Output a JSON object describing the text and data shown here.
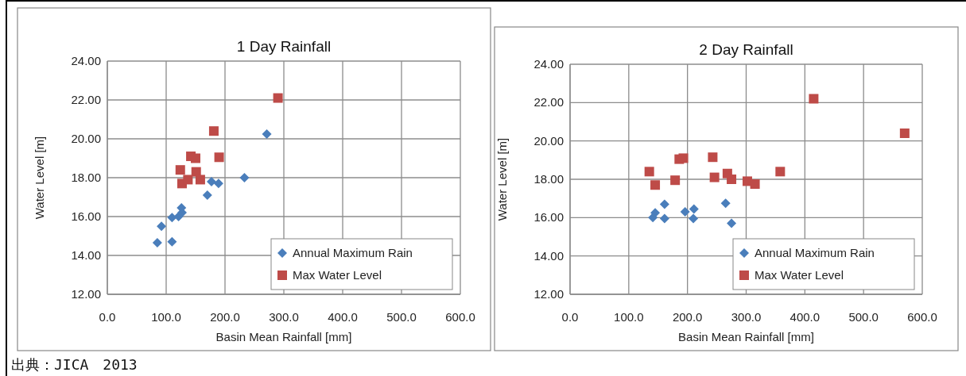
{
  "chart_data": [
    {
      "type": "scatter",
      "title": "1 Day Rainfall",
      "xlabel": "Basin Mean Rainfall [mm]",
      "ylabel": "Water Level [m]",
      "xlim": [
        0,
        600
      ],
      "ylim": [
        12,
        24
      ],
      "xticks": [
        {
          "value": 0,
          "label": "0.0"
        },
        {
          "value": 100,
          "label": "100.0"
        },
        {
          "value": 200,
          "label": "200.0"
        },
        {
          "value": 300,
          "label": "300.0"
        },
        {
          "value": 400,
          "label": "400.0"
        },
        {
          "value": 500,
          "label": "500.0"
        },
        {
          "value": 600,
          "label": "600.0"
        }
      ],
      "yticks": [
        {
          "value": 12,
          "label": "12.00"
        },
        {
          "value": 14,
          "label": "14.00"
        },
        {
          "value": 16,
          "label": "16.00"
        },
        {
          "value": 18,
          "label": "18.00"
        },
        {
          "value": 20,
          "label": "20.00"
        },
        {
          "value": 22,
          "label": "22.00"
        },
        {
          "value": 24,
          "label": "24.00"
        }
      ],
      "grid": true,
      "legend": "bottom right",
      "series": [
        {
          "name": "Annual Maximum Rain",
          "color": "#4a7ebb",
          "marker": "diamond",
          "x": [
            85,
            110,
            92,
            110,
            121,
            127,
            126,
            170,
            177,
            189,
            233,
            271
          ],
          "values": [
            14.65,
            14.7,
            15.5,
            15.95,
            16.0,
            16.2,
            16.45,
            17.1,
            17.8,
            17.7,
            18.0,
            20.25
          ]
        },
        {
          "name": "Max Water Level",
          "color": "#be4b48",
          "marker": "square",
          "x": [
            290,
            181,
            190,
            142,
            150,
            124,
            151,
            127,
            137,
            158
          ],
          "values": [
            22.1,
            20.4,
            19.05,
            19.1,
            19.0,
            18.4,
            18.3,
            17.7,
            17.9,
            17.9
          ]
        }
      ],
      "annotations": [
        "出典：JICA　2013"
      ]
    },
    {
      "type": "scatter",
      "title": "2 Day Rainfall",
      "xlabel": "Basin Mean Rainfall [mm]",
      "ylabel": "Water Level [m]",
      "xlim": [
        0,
        600
      ],
      "ylim": [
        12,
        24
      ],
      "xticks": [
        {
          "value": 0,
          "label": "0.0"
        },
        {
          "value": 100,
          "label": "100.0"
        },
        {
          "value": 200,
          "label": "200.0"
        },
        {
          "value": 300,
          "label": "300.0"
        },
        {
          "value": 400,
          "label": "400.0"
        },
        {
          "value": 500,
          "label": "500.0"
        },
        {
          "value": 600,
          "label": "600.0"
        }
      ],
      "yticks": [
        {
          "value": 12,
          "label": "12.00"
        },
        {
          "value": 14,
          "label": "14.00"
        },
        {
          "value": 16,
          "label": "16.00"
        },
        {
          "value": 18,
          "label": "18.00"
        },
        {
          "value": 20,
          "label": "20.00"
        },
        {
          "value": 22,
          "label": "22.00"
        },
        {
          "value": 24,
          "label": "24.00"
        }
      ],
      "grid": true,
      "legend": "bottom right",
      "series": [
        {
          "name": "Annual Maximum Rain",
          "color": "#4a7ebb",
          "marker": "diamond",
          "x": [
            141,
            145,
            161,
            161,
            196,
            211,
            210,
            265,
            275
          ],
          "values": [
            16.0,
            16.25,
            16.7,
            15.95,
            16.3,
            16.45,
            15.95,
            16.75,
            15.7
          ]
        },
        {
          "name": "Max Water Level",
          "color": "#be4b48",
          "marker": "square",
          "x": [
            135,
            145,
            179,
            186,
            193,
            243,
            246,
            268,
            275,
            302,
            315,
            358,
            415,
            570
          ],
          "values": [
            18.4,
            17.7,
            17.95,
            19.05,
            19.1,
            19.15,
            18.1,
            18.3,
            18.0,
            17.9,
            17.75,
            18.4,
            22.2,
            20.4
          ]
        }
      ]
    }
  ]
}
